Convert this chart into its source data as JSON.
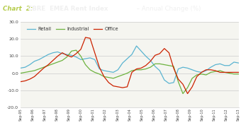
{
  "title_prefix": "Chart  2:",
  "title_main": "CBRE  EMEA Rent Index",
  "title_suffix": " – Annual Change (%)",
  "title_bg_color": "#1a5c35",
  "title_text_color": "#f0f0f0",
  "title_prefix_color": "#b5cc4a",
  "xlabels": [
    "Sep-95",
    "Sep-96",
    "Sep-97",
    "Sep-98",
    "Sep-99",
    "Sep-00",
    "Sep-01",
    "Sep-02",
    "Sep-03",
    "Sep-04",
    "Sep-05",
    "Sep-06",
    "Sep-07",
    "Sep-08",
    "Sep-09",
    "Sep-10",
    "Sep-11",
    "Sep-12",
    "Sep-13"
  ],
  "ylim": [
    -20.0,
    30.0
  ],
  "yticks": [
    -20.0,
    -10.0,
    0.0,
    10.0,
    20.0,
    30.0
  ],
  "grid_color": "#cccccc",
  "bg_color": "#ffffff",
  "plot_bg_color": "#f5f5f0",
  "retail_color": "#5ab4d1",
  "industrial_color": "#6db33f",
  "office_color": "#cc2200",
  "retail": [
    3.0,
    3.5,
    5.0,
    7.0,
    8.0,
    9.5,
    11.0,
    12.0,
    12.5,
    11.5,
    11.0,
    10.5,
    9.5,
    8.0,
    8.5,
    9.0,
    8.0,
    2.5,
    1.5,
    1.0,
    0.5,
    2.0,
    6.0,
    8.5,
    11.0,
    16.0,
    13.0,
    10.0,
    7.5,
    4.0,
    1.5,
    -4.0,
    -6.0,
    -5.5,
    2.5,
    3.5,
    3.0,
    2.0,
    1.0,
    0.5,
    1.5,
    3.5,
    5.0,
    5.5,
    4.5,
    4.5,
    6.5,
    6.0
  ],
  "industrial": [
    0.0,
    0.5,
    1.0,
    1.5,
    2.5,
    3.5,
    4.5,
    5.5,
    6.5,
    7.5,
    9.5,
    13.0,
    13.5,
    10.0,
    5.0,
    2.0,
    0.5,
    -0.5,
    -2.0,
    -2.5,
    -3.0,
    -2.0,
    -1.0,
    0.0,
    1.5,
    2.0,
    2.0,
    2.5,
    3.5,
    5.5,
    5.5,
    5.0,
    4.5,
    4.0,
    -5.0,
    -12.0,
    -8.5,
    -3.0,
    -1.0,
    -0.5,
    -1.0,
    0.5,
    1.0,
    1.5,
    0.5,
    0.0,
    -0.5,
    -0.5
  ],
  "office": [
    -5.0,
    -4.5,
    -3.5,
    -2.0,
    0.5,
    3.0,
    5.0,
    7.5,
    10.0,
    12.0,
    10.5,
    9.5,
    11.5,
    14.0,
    21.0,
    20.5,
    12.0,
    3.5,
    -2.0,
    -5.5,
    -7.5,
    -8.0,
    -8.5,
    -8.0,
    0.5,
    2.5,
    3.0,
    4.5,
    7.0,
    10.5,
    11.5,
    14.5,
    12.0,
    3.0,
    -3.5,
    -6.5,
    -12.0,
    -8.0,
    -2.0,
    0.5,
    2.0,
    2.0,
    1.5,
    0.5,
    0.5,
    0.5,
    0.5,
    0.5
  ],
  "n_points": 48,
  "xtick_step": 2.56,
  "legend_retail": "Retail",
  "legend_industrial": "Industrial",
  "legend_office": "Office"
}
